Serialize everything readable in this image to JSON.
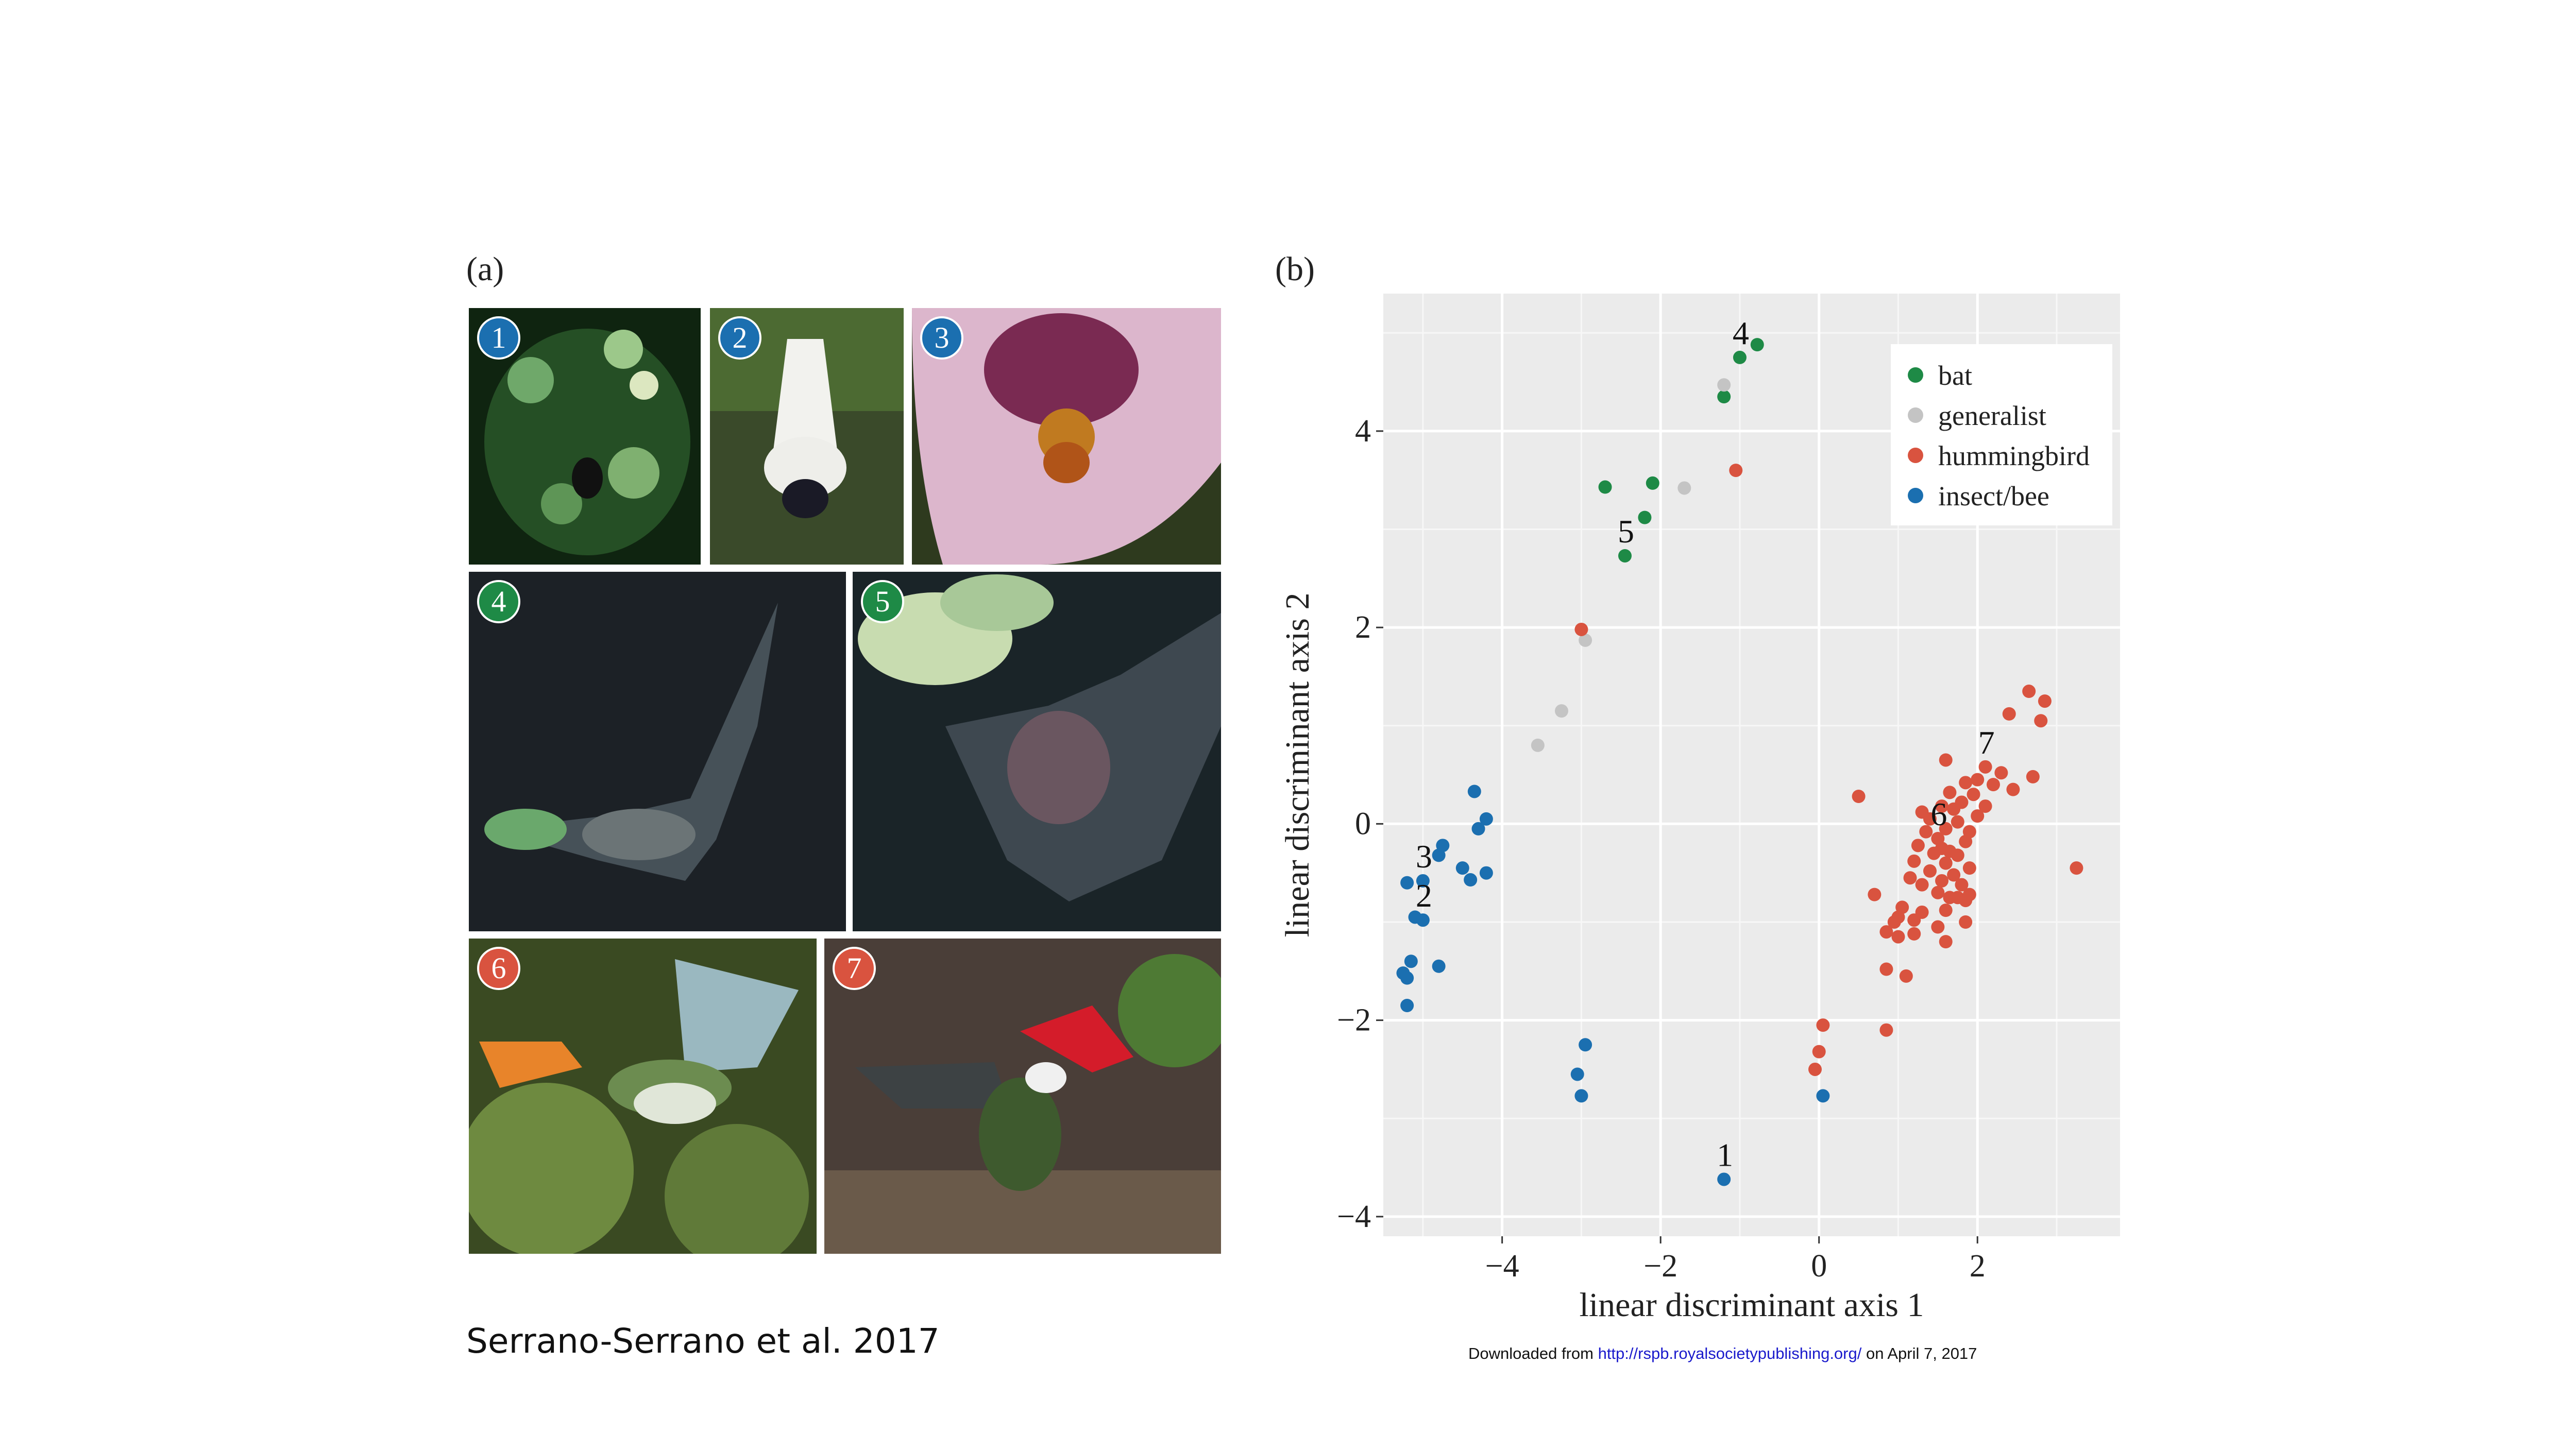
{
  "figure": {
    "panel_a_label": "(a)",
    "panel_b_label": "(b)",
    "caption": "Serrano-Serrano et al. 2017",
    "download": {
      "prefix": "Downloaded from ",
      "link": "http://rspb.royalsocietypublishing.org/",
      "suffix": " on April 7, 2017"
    }
  },
  "photos": [
    {
      "number": "1",
      "badge_color": "#1b6fb0",
      "subject": "insect-flower"
    },
    {
      "number": "2",
      "badge_color": "#1b6fb0",
      "subject": "bee-white-flower"
    },
    {
      "number": "3",
      "badge_color": "#1b6fb0",
      "subject": "bee-pink-flower"
    },
    {
      "number": "4",
      "badge_color": "#1e8a46",
      "subject": "bat-flying"
    },
    {
      "number": "5",
      "badge_color": "#1e8a46",
      "subject": "bat-flower"
    },
    {
      "number": "6",
      "badge_color": "#d9533f",
      "subject": "hummingbird-orange-flower"
    },
    {
      "number": "7",
      "badge_color": "#d9533f",
      "subject": "hummingbird-red-flower"
    }
  ],
  "chart_data": {
    "type": "scatter",
    "xlabel": "linear discriminant axis 1",
    "ylabel": "linear discriminant axis 2",
    "xlim": [
      -5.5,
      3.8
    ],
    "ylim": [
      -4.2,
      5.4
    ],
    "xticks": [
      -4,
      -2,
      0,
      2
    ],
    "xtick_labels": [
      "−4",
      "−2",
      "0",
      "2"
    ],
    "yticks": [
      -4,
      -2,
      0,
      2,
      4
    ],
    "ytick_labels": [
      "−4",
      "−2",
      "0",
      "2",
      "4"
    ],
    "grid": true,
    "legend_position": "top-right",
    "series": [
      {
        "name": "bat",
        "color": "#1e8a46",
        "points": [
          [
            -1.0,
            4.75
          ],
          [
            -0.78,
            4.88
          ],
          [
            -1.2,
            4.35
          ],
          [
            -2.7,
            3.43
          ],
          [
            -2.1,
            3.47
          ],
          [
            -2.2,
            3.12
          ],
          [
            -2.45,
            2.73
          ]
        ]
      },
      {
        "name": "generalist",
        "color": "#c4c4c4",
        "points": [
          [
            -1.2,
            4.47
          ],
          [
            -1.7,
            3.42
          ],
          [
            -2.95,
            1.87
          ],
          [
            -3.25,
            1.15
          ],
          [
            -3.55,
            0.8
          ]
        ]
      },
      {
        "name": "hummingbird",
        "color": "#d9533f",
        "points": [
          [
            -1.05,
            3.6
          ],
          [
            -3.0,
            1.98
          ],
          [
            2.65,
            1.35
          ],
          [
            2.85,
            1.25
          ],
          [
            2.4,
            1.12
          ],
          [
            2.8,
            1.05
          ],
          [
            1.6,
            0.65
          ],
          [
            2.1,
            0.58
          ],
          [
            2.3,
            0.52
          ],
          [
            2.0,
            0.45
          ],
          [
            2.7,
            0.48
          ],
          [
            1.85,
            0.42
          ],
          [
            2.2,
            0.4
          ],
          [
            1.65,
            0.32
          ],
          [
            1.95,
            0.3
          ],
          [
            2.45,
            0.35
          ],
          [
            0.5,
            0.28
          ],
          [
            1.8,
            0.22
          ],
          [
            2.1,
            0.18
          ],
          [
            1.55,
            0.18
          ],
          [
            1.7,
            0.15
          ],
          [
            1.3,
            0.12
          ],
          [
            2.0,
            0.08
          ],
          [
            1.4,
            0.05
          ],
          [
            1.75,
            0.02
          ],
          [
            1.6,
            -0.05
          ],
          [
            1.35,
            -0.08
          ],
          [
            1.9,
            -0.08
          ],
          [
            1.5,
            -0.15
          ],
          [
            1.85,
            -0.18
          ],
          [
            1.25,
            -0.22
          ],
          [
            1.55,
            -0.25
          ],
          [
            1.65,
            -0.28
          ],
          [
            1.45,
            -0.3
          ],
          [
            1.75,
            -0.32
          ],
          [
            1.2,
            -0.38
          ],
          [
            1.6,
            -0.4
          ],
          [
            1.9,
            -0.45
          ],
          [
            1.4,
            -0.48
          ],
          [
            1.7,
            -0.52
          ],
          [
            1.15,
            -0.55
          ],
          [
            1.55,
            -0.58
          ],
          [
            1.3,
            -0.62
          ],
          [
            1.8,
            -0.62
          ],
          [
            1.5,
            -0.7
          ],
          [
            1.9,
            -0.72
          ],
          [
            1.65,
            -0.75
          ],
          [
            1.75,
            -0.75
          ],
          [
            1.85,
            -0.78
          ],
          [
            1.05,
            -0.85
          ],
          [
            1.6,
            -0.88
          ],
          [
            1.3,
            -0.9
          ],
          [
            1.0,
            -0.95
          ],
          [
            1.2,
            -0.98
          ],
          [
            0.95,
            -1.0
          ],
          [
            1.85,
            -1.0
          ],
          [
            1.5,
            -1.05
          ],
          [
            0.85,
            -1.1
          ],
          [
            1.2,
            -1.12
          ],
          [
            1.0,
            -1.15
          ],
          [
            1.6,
            -1.2
          ],
          [
            0.7,
            -0.72
          ],
          [
            3.25,
            -0.45
          ],
          [
            0.85,
            -1.48
          ],
          [
            1.1,
            -1.55
          ],
          [
            0.85,
            -2.1
          ],
          [
            0.05,
            -2.05
          ],
          [
            0.0,
            -2.32
          ],
          [
            -0.05,
            -2.5
          ]
        ]
      },
      {
        "name": "insect/bee",
        "color": "#1b6fb0",
        "points": [
          [
            -4.35,
            0.33
          ],
          [
            -4.2,
            0.05
          ],
          [
            -4.3,
            -0.05
          ],
          [
            -4.75,
            -0.22
          ],
          [
            -4.8,
            -0.32
          ],
          [
            -4.5,
            -0.45
          ],
          [
            -4.2,
            -0.5
          ],
          [
            -4.4,
            -0.57
          ],
          [
            -5.0,
            -0.58
          ],
          [
            -5.2,
            -0.6
          ],
          [
            -5.1,
            -0.95
          ],
          [
            -5.0,
            -0.98
          ],
          [
            -5.15,
            -1.4
          ],
          [
            -5.25,
            -1.52
          ],
          [
            -5.2,
            -1.57
          ],
          [
            -4.8,
            -1.45
          ],
          [
            -5.2,
            -1.85
          ],
          [
            -2.95,
            -2.25
          ],
          [
            -3.05,
            -2.55
          ],
          [
            -3.0,
            -2.77
          ],
          [
            0.05,
            -2.77
          ],
          [
            -1.2,
            -3.62
          ]
        ]
      }
    ],
    "annotations": [
      {
        "text": "1",
        "x": -1.2,
        "y": -3.62
      },
      {
        "text": "2",
        "x": -5.0,
        "y": -0.98
      },
      {
        "text": "3",
        "x": -5.0,
        "y": -0.58
      },
      {
        "text": "4",
        "x": -1.0,
        "y": 4.75
      },
      {
        "text": "5",
        "x": -2.45,
        "y": 2.73
      },
      {
        "text": "6",
        "x": 1.5,
        "y": -0.15
      },
      {
        "text": "7",
        "x": 2.1,
        "y": 0.58
      }
    ]
  }
}
